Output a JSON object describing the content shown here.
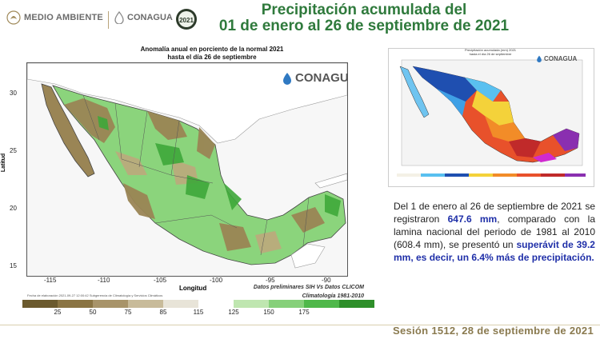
{
  "header": {
    "org1": "MEDIO AMBIENTE",
    "org2": "CONAGUA",
    "badge_year": "2021",
    "title_line1": "Precipitación acumulada del",
    "title_line2": "01 de enero al 26 de septiembre de 2021"
  },
  "map": {
    "title_line1": "Anomalía anual en porciento de la normal 2021",
    "title_line2": "hasta el día 26 de septiembre",
    "logo": "CONAGUA",
    "y_axis_label": "Latitud",
    "x_axis_label": "Longitud",
    "y_ticks": [
      "30",
      "25",
      "20",
      "15"
    ],
    "x_ticks": [
      "-115",
      "-110",
      "-105",
      "-100",
      "-95",
      "-90"
    ],
    "credits_line1": "Datos preliminares SIH Vs Datos CLICOM",
    "credits_line2": "Climatología 1981-2010",
    "fine_print": "Fecha de elaboración 2021-09-27 12:00:42 Subgerencia de Climatología y Servicios Climáticos",
    "legend_ticks": [
      "25",
      "50",
      "75",
      "85",
      "115",
      "125",
      "150",
      "175"
    ],
    "legend_colors": [
      "#6b5a2e",
      "#8a7443",
      "#a8946a",
      "#c8bb9a",
      "#e8e4d8",
      "#ffffff",
      "#bfe6b0",
      "#86d07a",
      "#4fb84a",
      "#2e8f2a"
    ]
  },
  "small_map": {
    "title_line1": "Precipitación acumulada (mm) 2021",
    "title_line2": "hasta el día 26 de septiembre",
    "logo": "CONAGUA"
  },
  "description": {
    "part1": "Del 1 de enero al 26 de septiembre de 2021 se registraron ",
    "amount": "647.6 mm",
    "part2": ", comparado con la lamina nacional del periodo de 1981 al 2010 (608.4 mm), se presentó un ",
    "surplus": "superávit de 39.2 mm, es decir, un 6.4% más de precipitación."
  },
  "footer": {
    "session": "Sesión 1512, 28 de septiembre de 2021"
  }
}
